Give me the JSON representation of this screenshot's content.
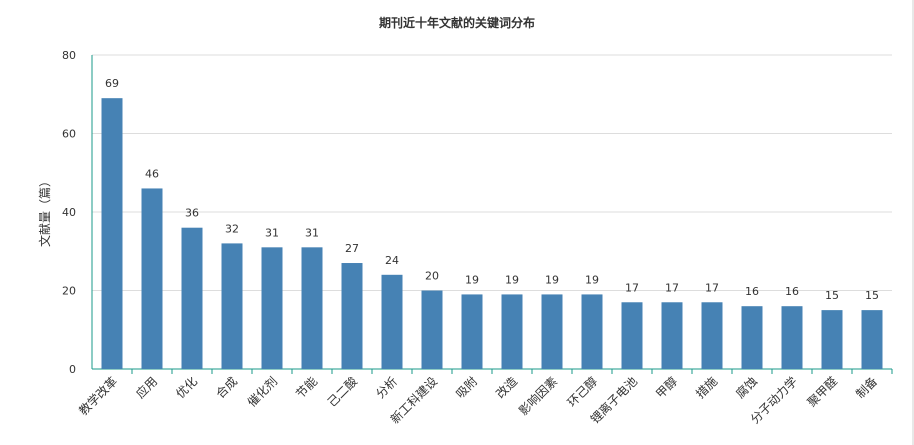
{
  "chart_data": {
    "type": "bar",
    "title": "期刊近十年文献的关键词分布",
    "xlabel": "",
    "ylabel": "文献量（篇）",
    "ylim": [
      0,
      80
    ],
    "yticks": [
      0,
      20,
      40,
      60,
      80
    ],
    "grid": true,
    "legend": "none",
    "bar_color": "#4682b4",
    "categories": [
      "教学改革",
      "应用",
      "优化",
      "合成",
      "催化剂",
      "节能",
      "己二酸",
      "分析",
      "新工科建设",
      "吸附",
      "改造",
      "影响因素",
      "环己醇",
      "锂离子电池",
      "甲醇",
      "措施",
      "腐蚀",
      "分子动力学",
      "聚甲醛",
      "制备"
    ],
    "values": [
      69,
      46,
      36,
      32,
      31,
      31,
      27,
      24,
      20,
      19,
      19,
      19,
      19,
      17,
      17,
      17,
      16,
      16,
      15,
      15
    ]
  }
}
